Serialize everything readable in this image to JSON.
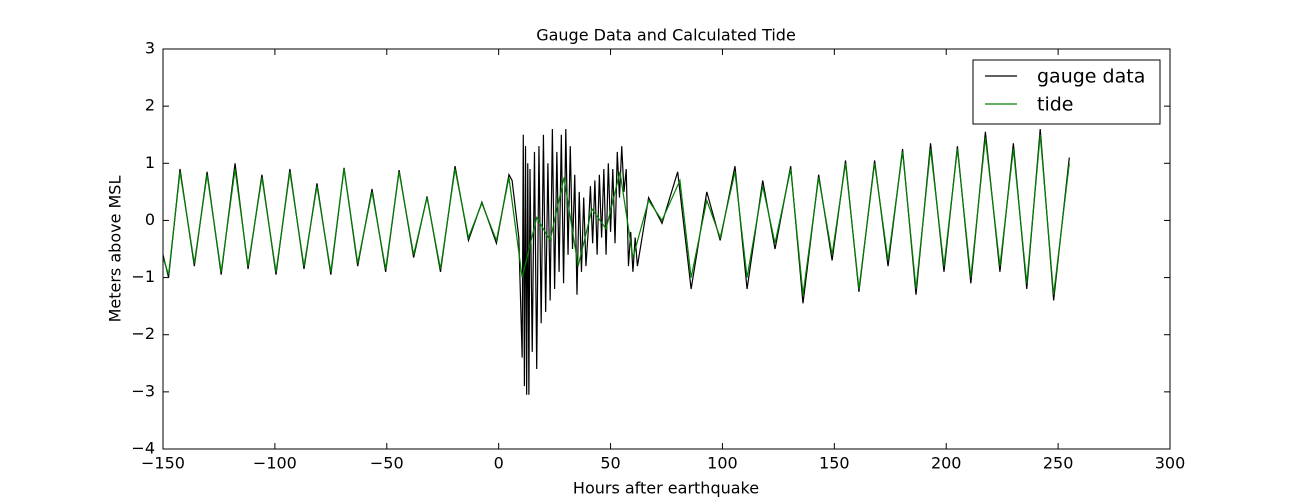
{
  "chart_data": {
    "type": "line",
    "title": "Gauge Data and Calculated Tide",
    "x_label": "Hours after earthquake",
    "y_label": "Meters above MSL",
    "xlim": [
      -150,
      300
    ],
    "xticks": [
      -150,
      -100,
      -50,
      0,
      50,
      100,
      150,
      200,
      250,
      300
    ],
    "ylim": [
      -4,
      3
    ],
    "yticks": [
      -4,
      -3,
      -2,
      -1,
      0,
      1,
      2,
      3
    ],
    "legend": "upper right",
    "series": [
      {
        "name": "gauge data",
        "color": "#000000",
        "x": [
          -150,
          -147.5,
          -142.4,
          -136,
          -130.3,
          -124,
          -117.8,
          -112,
          -105.8,
          -99.5,
          -93.3,
          -87,
          -81.2,
          -75,
          -69.1,
          -63,
          -56.6,
          -50.5,
          -44.5,
          -38,
          -32,
          -26,
          -19.5,
          -13.5,
          -7.5,
          -1,
          4.6,
          6,
          9,
          10.5,
          11,
          11.5,
          12,
          12.5,
          13,
          13.5,
          14,
          15,
          16,
          17,
          18,
          19,
          20,
          21,
          22,
          23,
          24,
          25,
          26,
          27,
          28,
          29,
          30,
          31,
          32,
          33,
          34,
          35,
          36,
          37,
          38,
          39,
          40,
          41,
          42,
          43,
          44,
          45,
          46,
          47,
          48,
          49,
          50,
          51,
          52,
          53,
          54,
          55,
          56,
          57,
          58,
          59,
          60,
          61,
          62,
          67,
          73,
          80,
          86,
          93,
          99,
          105.6,
          111,
          118,
          123.5,
          130.5,
          136,
          143,
          149,
          155,
          161,
          168,
          174,
          180.5,
          186.5,
          193,
          199,
          205,
          211,
          217.5,
          224,
          230,
          236,
          242,
          248,
          255
        ],
        "values": [
          -0.6,
          -1.0,
          0.9,
          -0.8,
          0.85,
          -0.95,
          1.0,
          -0.85,
          0.8,
          -0.95,
          0.9,
          -0.85,
          0.65,
          -0.95,
          0.92,
          -0.8,
          0.55,
          -0.9,
          0.88,
          -0.65,
          0.42,
          -0.9,
          0.95,
          -0.35,
          0.32,
          -0.4,
          0.8,
          0.7,
          -0.3,
          -2.4,
          1.5,
          -2.9,
          1.3,
          -3.05,
          1.0,
          -3.05,
          0.9,
          -2.3,
          1.2,
          -2.6,
          1.3,
          -1.8,
          1.5,
          -1.6,
          1.0,
          -1.4,
          1.6,
          -1.2,
          1.2,
          -0.9,
          1.5,
          -1.1,
          1.6,
          -0.6,
          1.3,
          -0.5,
          0.8,
          -1.3,
          0.5,
          -0.9,
          0.4,
          -0.8,
          -0.2,
          0.6,
          -0.4,
          0.7,
          -0.6,
          0.8,
          -0.3,
          0.9,
          -0.6,
          1.0,
          -0.2,
          0.9,
          -0.4,
          1.2,
          0.4,
          1.3,
          0.5,
          0.9,
          -0.8,
          -0.2,
          -0.9,
          -0.3,
          -0.8,
          0.4,
          -0.05,
          0.85,
          -1.2,
          0.5,
          -0.35,
          0.95,
          -1.2,
          0.7,
          -0.5,
          0.95,
          -1.45,
          0.8,
          -0.7,
          1.05,
          -1.25,
          1.05,
          -0.8,
          1.25,
          -1.3,
          1.35,
          -0.9,
          1.3,
          -1.1,
          1.55,
          -0.9,
          1.35,
          -1.2,
          1.6,
          -1.4,
          1.1
        ]
      },
      {
        "name": "tide",
        "color": "#008000",
        "x": [
          -150,
          -147.5,
          -142.4,
          -136,
          -130.3,
          -124,
          -117.8,
          -112,
          -105.8,
          -99.5,
          -93.3,
          -87,
          -81.2,
          -75,
          -69.1,
          -63,
          -56.6,
          -50.5,
          -44.5,
          -38,
          -32,
          -26,
          -19.5,
          -13.5,
          -7.5,
          -1,
          4.6,
          10.5,
          17,
          23,
          29.2,
          35.5,
          41.7,
          48,
          54.2,
          60,
          67,
          73,
          81,
          86,
          93,
          99,
          105.6,
          111,
          118,
          123.5,
          130.5,
          136,
          143,
          149,
          155,
          161,
          168,
          174,
          180.5,
          186.5,
          193,
          199,
          205,
          211,
          217.5,
          224,
          230,
          236,
          242,
          248,
          255
        ],
        "values": [
          -0.65,
          -0.95,
          0.85,
          -0.75,
          0.8,
          -0.9,
          0.9,
          -0.8,
          0.75,
          -0.9,
          0.85,
          -0.8,
          0.6,
          -0.9,
          0.9,
          -0.75,
          0.5,
          -0.85,
          0.85,
          -0.6,
          0.4,
          -0.85,
          0.9,
          -0.3,
          0.3,
          -0.35,
          0.75,
          -1.0,
          0.05,
          -0.35,
          0.75,
          -0.8,
          0.2,
          -0.15,
          0.85,
          -0.65,
          0.35,
          0.0,
          0.7,
          -1.0,
          0.35,
          -0.3,
          0.85,
          -1.0,
          0.6,
          -0.4,
          0.9,
          -1.3,
          0.75,
          -0.6,
          1.0,
          -1.2,
          1.0,
          -0.7,
          1.2,
          -1.2,
          1.25,
          -0.8,
          1.25,
          -1.0,
          1.45,
          -0.8,
          1.25,
          -1.1,
          1.5,
          -1.3,
          1.0
        ]
      }
    ]
  }
}
